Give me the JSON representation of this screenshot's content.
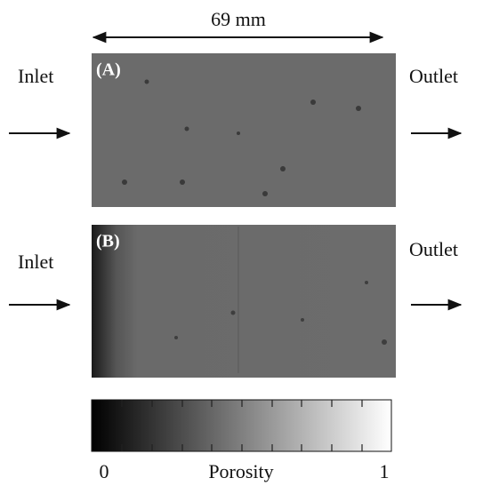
{
  "dimension_label": "69 mm",
  "panels": [
    {
      "label": "(A)",
      "inlet": "Inlet",
      "outlet": "Outlet"
    },
    {
      "label": "(B)",
      "inlet": "Inlet",
      "outlet": "Outlet"
    }
  ],
  "colorbar": {
    "title": "Porosity",
    "min": 0,
    "max": 1
  }
}
